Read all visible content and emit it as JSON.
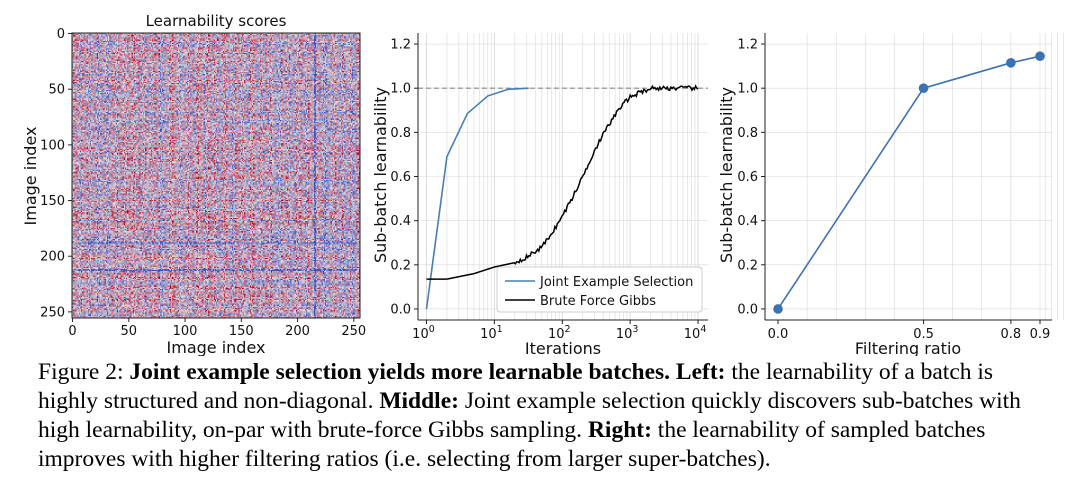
{
  "colors": {
    "jes": "#4a7eb3",
    "gibbs": "#000000",
    "filter": "#3b73b0",
    "heatmap_low": "#3b4cc0",
    "heatmap_mid": "#dddddd",
    "heatmap_high": "#b40426",
    "grid": "#d9d9d9"
  },
  "caption": {
    "prefix": "Figure 2: ",
    "title": "Joint example selection yields more learnable batches.",
    "left_label": "Left:",
    "left_text": " the learnability of a batch is highly structured and non-diagonal. ",
    "middle_label": "Middle:",
    "middle_text": " Joint example selection quickly discovers sub-batches with high learnability, on-par with brute-force Gibbs sampling. ",
    "right_label": "Right:",
    "right_text": " the learnability of sampled batches improves with higher filtering ratios (i.e. selecting from larger super-batches)."
  },
  "chart_data": [
    {
      "type": "heatmap",
      "title": "Learnability scores",
      "xlabel": "Image index",
      "ylabel": "Image index",
      "size": 256,
      "xticks": [
        0,
        50,
        100,
        150,
        200,
        250
      ],
      "yticks": [
        0,
        50,
        100,
        150,
        200,
        250
      ],
      "colormap": "coolwarm"
    },
    {
      "type": "line",
      "title": "",
      "xlabel": "Iterations",
      "ylabel": "Sub-batch learnability",
      "xscale": "log",
      "xlim": [
        0.75,
        14000
      ],
      "ylim": [
        -0.05,
        1.25
      ],
      "xtick_labels": [
        "10^0",
        "10^1",
        "10^2",
        "10^3",
        "10^4"
      ],
      "yticks": [
        0.0,
        0.2,
        0.4,
        0.6,
        0.8,
        1.0,
        1.2
      ],
      "reference_line": 1.0,
      "legend_position": "lower-right",
      "series": [
        {
          "name": "Joint Example Selection",
          "x": [
            1,
            2,
            4,
            8,
            16,
            32
          ],
          "y": [
            0.0,
            0.69,
            0.885,
            0.965,
            0.995,
            1.0
          ]
        },
        {
          "name": "Brute Force Gibbs",
          "x": [
            1,
            2,
            5,
            10,
            20,
            30,
            50,
            80,
            100,
            150,
            200,
            300,
            400,
            500,
            600,
            800,
            1000,
            1500,
            2000,
            3000,
            5000,
            10000
          ],
          "y": [
            0.135,
            0.135,
            0.16,
            0.19,
            0.21,
            0.235,
            0.28,
            0.37,
            0.42,
            0.52,
            0.6,
            0.72,
            0.79,
            0.84,
            0.88,
            0.93,
            0.96,
            0.985,
            1.0,
            1.0,
            1.0,
            1.0
          ]
        }
      ]
    },
    {
      "type": "line",
      "title": "",
      "xlabel": "Filtering ratio",
      "ylabel": "Sub-batch learnability",
      "ylim": [
        -0.05,
        1.25
      ],
      "yticks": [
        0.0,
        0.2,
        0.4,
        0.6,
        0.8,
        1.0,
        1.2
      ],
      "categories": [
        "0.0",
        "0.5",
        "0.8",
        "0.9"
      ],
      "series": [
        {
          "values": [
            0.0,
            1.0,
            1.115,
            1.145
          ]
        }
      ]
    }
  ]
}
